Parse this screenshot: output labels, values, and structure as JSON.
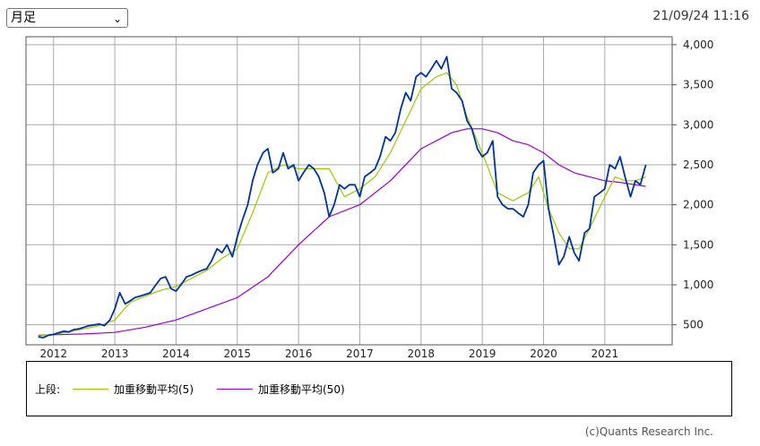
{
  "header": {
    "period_select_value": "月足",
    "timestamp": "21/09/24 11:16"
  },
  "legend": {
    "prefix": "上段:",
    "items": [
      {
        "label": "加重移動平均(5)",
        "color": "#99cc00"
      },
      {
        "label": "加重移動平均(50)",
        "color": "#9900cc"
      }
    ]
  },
  "footer": {
    "copyright": "(c)Quants Research Inc."
  },
  "chart_data": {
    "type": "line",
    "xlim": [
      2011.55,
      2022.1
    ],
    "ylim": [
      250,
      4100
    ],
    "x_ticks": [
      2012,
      2013,
      2014,
      2015,
      2016,
      2017,
      2018,
      2019,
      2020,
      2021
    ],
    "x_tick_labels": [
      "2012",
      "2013",
      "2014",
      "2015",
      "2016",
      "2017",
      "2018",
      "2019",
      "2020",
      "2021"
    ],
    "y_ticks": [
      500,
      1000,
      1500,
      2000,
      2500,
      3000,
      3500,
      4000
    ],
    "y_tick_labels": [
      "500",
      "1,000",
      "1,500",
      "2,000",
      "2,500",
      "3,000",
      "3,500",
      "4,000"
    ],
    "grid": true,
    "colors": {
      "price": "#003399",
      "wma5": "#99cc00",
      "wma50": "#9900cc"
    },
    "series": [
      {
        "key": "price",
        "x": [
          2011.75,
          2011.83,
          2011.92,
          2012.0,
          2012.08,
          2012.17,
          2012.25,
          2012.33,
          2012.42,
          2012.5,
          2012.58,
          2012.67,
          2012.75,
          2012.83,
          2012.92,
          2013.0,
          2013.08,
          2013.17,
          2013.25,
          2013.33,
          2013.42,
          2013.5,
          2013.58,
          2013.67,
          2013.75,
          2013.83,
          2013.92,
          2014.0,
          2014.08,
          2014.17,
          2014.25,
          2014.33,
          2014.42,
          2014.5,
          2014.58,
          2014.67,
          2014.75,
          2014.83,
          2014.92,
          2015.0,
          2015.08,
          2015.17,
          2015.25,
          2015.33,
          2015.42,
          2015.5,
          2015.58,
          2015.67,
          2015.75,
          2015.83,
          2015.92,
          2016.0,
          2016.08,
          2016.17,
          2016.25,
          2016.33,
          2016.42,
          2016.5,
          2016.58,
          2016.67,
          2016.75,
          2016.83,
          2016.92,
          2017.0,
          2017.08,
          2017.17,
          2017.25,
          2017.33,
          2017.42,
          2017.5,
          2017.58,
          2017.67,
          2017.75,
          2017.83,
          2017.92,
          2018.0,
          2018.08,
          2018.17,
          2018.25,
          2018.33,
          2018.42,
          2018.5,
          2018.58,
          2018.67,
          2018.75,
          2018.83,
          2018.92,
          2019.0,
          2019.08,
          2019.17,
          2019.25,
          2019.33,
          2019.42,
          2019.5,
          2019.58,
          2019.67,
          2019.75,
          2019.83,
          2019.92,
          2020.0,
          2020.08,
          2020.17,
          2020.25,
          2020.33,
          2020.42,
          2020.5,
          2020.58,
          2020.67,
          2020.75,
          2020.83,
          2020.92,
          2021.0,
          2021.08,
          2021.17,
          2021.25,
          2021.33,
          2021.42,
          2021.5,
          2021.58,
          2021.67
        ],
        "values": [
          350,
          340,
          370,
          380,
          400,
          420,
          410,
          440,
          450,
          470,
          490,
          500,
          510,
          490,
          560,
          700,
          900,
          760,
          800,
          840,
          860,
          880,
          900,
          1000,
          1080,
          1100,
          950,
          920,
          1000,
          1100,
          1120,
          1150,
          1180,
          1200,
          1300,
          1450,
          1400,
          1500,
          1350,
          1600,
          1800,
          2000,
          2300,
          2500,
          2650,
          2700,
          2400,
          2450,
          2650,
          2450,
          2500,
          2300,
          2400,
          2500,
          2450,
          2350,
          2150,
          1850,
          2000,
          2250,
          2200,
          2250,
          2250,
          2100,
          2350,
          2400,
          2450,
          2600,
          2850,
          2800,
          2900,
          3200,
          3400,
          3300,
          3600,
          3650,
          3600,
          3700,
          3800,
          3700,
          3850,
          3450,
          3400,
          3300,
          3050,
          2950,
          2700,
          2600,
          2650,
          2800,
          2100,
          2000,
          1950,
          1950,
          1900,
          1850,
          2000,
          2400,
          2500,
          2550,
          1950,
          1600,
          1250,
          1350,
          1600,
          1400,
          1300,
          1650,
          1700,
          2100,
          2150,
          2200,
          2500,
          2450,
          2600,
          2350,
          2100,
          2300,
          2250,
          2500
        ]
      },
      {
        "key": "wma5",
        "label": "加重移動平均(5)",
        "x": [
          2011.75,
          2012.0,
          2012.25,
          2012.5,
          2012.75,
          2013.0,
          2013.25,
          2013.5,
          2013.75,
          2014.0,
          2014.25,
          2014.5,
          2014.75,
          2015.0,
          2015.25,
          2015.5,
          2015.75,
          2016.0,
          2016.25,
          2016.5,
          2016.75,
          2017.0,
          2017.25,
          2017.5,
          2017.75,
          2018.0,
          2018.25,
          2018.42,
          2018.58,
          2018.75,
          2019.0,
          2019.25,
          2019.5,
          2019.75,
          2019.92,
          2020.08,
          2020.25,
          2020.42,
          2020.58,
          2020.75,
          2021.0,
          2021.17,
          2021.33,
          2021.5,
          2021.67
        ],
        "values": [
          360,
          380,
          410,
          450,
          490,
          560,
          780,
          860,
          930,
          980,
          1080,
          1180,
          1330,
          1450,
          1900,
          2400,
          2500,
          2450,
          2450,
          2450,
          2100,
          2200,
          2350,
          2650,
          3050,
          3450,
          3600,
          3650,
          3500,
          3100,
          2650,
          2150,
          2050,
          2150,
          2350,
          1950,
          1650,
          1450,
          1450,
          1700,
          2100,
          2350,
          2300,
          2300,
          2350
        ]
      },
      {
        "key": "wma50",
        "label": "加重移動平均(50)",
        "x": [
          2011.75,
          2012.0,
          2012.5,
          2013.0,
          2013.5,
          2014.0,
          2014.5,
          2015.0,
          2015.5,
          2016.0,
          2016.5,
          2017.0,
          2017.5,
          2018.0,
          2018.5,
          2018.75,
          2019.0,
          2019.25,
          2019.5,
          2019.75,
          2020.0,
          2020.25,
          2020.5,
          2020.75,
          2021.0,
          2021.25,
          2021.5,
          2021.67
        ],
        "values": [
          370,
          375,
          385,
          405,
          470,
          560,
          700,
          840,
          1100,
          1500,
          1850,
          2000,
          2300,
          2700,
          2900,
          2950,
          2950,
          2900,
          2800,
          2750,
          2650,
          2500,
          2400,
          2350,
          2300,
          2280,
          2250,
          2230
        ]
      }
    ]
  }
}
